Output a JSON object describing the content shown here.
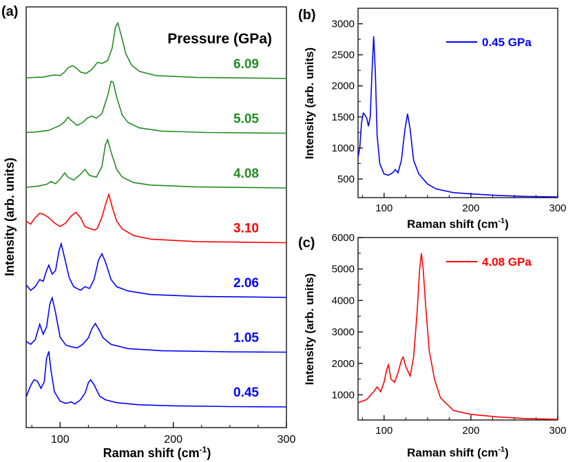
{
  "chart_data": [
    {
      "panel": "(a)",
      "type": "line",
      "xlabel": "Raman shift (cm",
      "xlabel_sup": "-1",
      "xlabel_close": ")",
      "ylabel": "Intensity (arb. units)",
      "xlim": [
        70,
        300
      ],
      "xticks": [
        100,
        200,
        300
      ],
      "legend_title": "Pressure (GPa)",
      "series": [
        {
          "name": "0.45",
          "color": "#0000ff",
          "offset": 0,
          "scale": 1,
          "points": [
            [
              70,
              0.28
            ],
            [
              74,
              0.6
            ],
            [
              77,
              0.76
            ],
            [
              80,
              0.72
            ],
            [
              83,
              0.52
            ],
            [
              86,
              0.7
            ],
            [
              88,
              1.35
            ],
            [
              90,
              1.55
            ],
            [
              92,
              1.0
            ],
            [
              95,
              0.42
            ],
            [
              100,
              0.16
            ],
            [
              105,
              0.1
            ],
            [
              110,
              0.14
            ],
            [
              113,
              0.08
            ],
            [
              118,
              0.2
            ],
            [
              122,
              0.38
            ],
            [
              125,
              0.68
            ],
            [
              127,
              0.76
            ],
            [
              130,
              0.62
            ],
            [
              135,
              0.3
            ],
            [
              140,
              0.2
            ],
            [
              150,
              0.12
            ],
            [
              170,
              0.06
            ],
            [
              200,
              0.03
            ],
            [
              250,
              0.01
            ],
            [
              300,
              0
            ]
          ]
        },
        {
          "name": "1.05",
          "color": "#0000ff",
          "offset": 1,
          "scale": 1,
          "points": [
            [
              70,
              0.3
            ],
            [
              74,
              0.22
            ],
            [
              78,
              0.35
            ],
            [
              82,
              0.78
            ],
            [
              85,
              0.5
            ],
            [
              88,
              0.7
            ],
            [
              91,
              1.35
            ],
            [
              93,
              1.52
            ],
            [
              96,
              1.1
            ],
            [
              100,
              0.42
            ],
            [
              105,
              0.2
            ],
            [
              110,
              0.15
            ],
            [
              115,
              0.12
            ],
            [
              120,
              0.22
            ],
            [
              125,
              0.4
            ],
            [
              128,
              0.65
            ],
            [
              131,
              0.8
            ],
            [
              134,
              0.65
            ],
            [
              138,
              0.4
            ],
            [
              145,
              0.22
            ],
            [
              160,
              0.1
            ],
            [
              190,
              0.04
            ],
            [
              250,
              0.01
            ],
            [
              300,
              0
            ]
          ]
        },
        {
          "name": "2.06",
          "color": "#0000ff",
          "offset": 2,
          "scale": 1,
          "points": [
            [
              70,
              0.35
            ],
            [
              74,
              0.2
            ],
            [
              78,
              0.3
            ],
            [
              82,
              0.5
            ],
            [
              85,
              0.45
            ],
            [
              88,
              0.75
            ],
            [
              90,
              0.9
            ],
            [
              93,
              0.65
            ],
            [
              96,
              0.75
            ],
            [
              99,
              1.3
            ],
            [
              101,
              1.5
            ],
            [
              104,
              1.1
            ],
            [
              108,
              0.55
            ],
            [
              112,
              0.3
            ],
            [
              118,
              0.2
            ],
            [
              122,
              0.3
            ],
            [
              126,
              0.25
            ],
            [
              130,
              0.5
            ],
            [
              134,
              1.05
            ],
            [
              137,
              1.22
            ],
            [
              140,
              1.0
            ],
            [
              145,
              0.5
            ],
            [
              150,
              0.3
            ],
            [
              160,
              0.18
            ],
            [
              180,
              0.08
            ],
            [
              220,
              0.03
            ],
            [
              300,
              0
            ]
          ]
        },
        {
          "name": "3.10",
          "color": "#ff0000",
          "offset": 3,
          "scale": 1,
          "points": [
            [
              70,
              0.6
            ],
            [
              74,
              0.52
            ],
            [
              78,
              0.7
            ],
            [
              82,
              0.82
            ],
            [
              85,
              0.8
            ],
            [
              90,
              0.7
            ],
            [
              95,
              0.55
            ],
            [
              100,
              0.45
            ],
            [
              105,
              0.55
            ],
            [
              110,
              0.75
            ],
            [
              114,
              0.85
            ],
            [
              118,
              0.7
            ],
            [
              122,
              0.45
            ],
            [
              126,
              0.4
            ],
            [
              130,
              0.35
            ],
            [
              133,
              0.4
            ],
            [
              137,
              0.72
            ],
            [
              140,
              1.05
            ],
            [
              143,
              1.35
            ],
            [
              146,
              1.0
            ],
            [
              150,
              0.6
            ],
            [
              155,
              0.38
            ],
            [
              165,
              0.2
            ],
            [
              180,
              0.1
            ],
            [
              220,
              0.03
            ],
            [
              300,
              0
            ]
          ]
        },
        {
          "name": "4.08",
          "color": "#228b22",
          "offset": 4,
          "scale": 1,
          "points": [
            [
              70,
              0.02
            ],
            [
              80,
              0.05
            ],
            [
              88,
              0.1
            ],
            [
              92,
              0.18
            ],
            [
              96,
              0.12
            ],
            [
              100,
              0.25
            ],
            [
              104,
              0.42
            ],
            [
              107,
              0.3
            ],
            [
              112,
              0.22
            ],
            [
              118,
              0.38
            ],
            [
              122,
              0.52
            ],
            [
              126,
              0.35
            ],
            [
              132,
              0.3
            ],
            [
              137,
              0.6
            ],
            [
              140,
              1.2
            ],
            [
              142,
              1.35
            ],
            [
              145,
              1.0
            ],
            [
              150,
              0.52
            ],
            [
              155,
              0.3
            ],
            [
              165,
              0.15
            ],
            [
              180,
              0.08
            ],
            [
              220,
              0.03
            ],
            [
              300,
              0
            ]
          ]
        },
        {
          "name": "5.05",
          "color": "#228b22",
          "offset": 5,
          "scale": 1,
          "points": [
            [
              70,
              0.02
            ],
            [
              80,
              0.04
            ],
            [
              90,
              0.08
            ],
            [
              95,
              0.15
            ],
            [
              100,
              0.22
            ],
            [
              104,
              0.32
            ],
            [
              107,
              0.45
            ],
            [
              110,
              0.35
            ],
            [
              115,
              0.22
            ],
            [
              120,
              0.3
            ],
            [
              124,
              0.42
            ],
            [
              128,
              0.48
            ],
            [
              132,
              0.42
            ],
            [
              137,
              0.55
            ],
            [
              142,
              1.05
            ],
            [
              145,
              1.45
            ],
            [
              147,
              1.42
            ],
            [
              150,
              1.0
            ],
            [
              155,
              0.5
            ],
            [
              160,
              0.3
            ],
            [
              170,
              0.15
            ],
            [
              190,
              0.06
            ],
            [
              230,
              0.02
            ],
            [
              300,
              0
            ]
          ]
        },
        {
          "name": "6.09",
          "color": "#228b22",
          "offset": 6,
          "scale": 1,
          "points": [
            [
              70,
              0.02
            ],
            [
              85,
              0.04
            ],
            [
              95,
              0.1
            ],
            [
              100,
              0.08
            ],
            [
              104,
              0.18
            ],
            [
              107,
              0.3
            ],
            [
              111,
              0.36
            ],
            [
              114,
              0.3
            ],
            [
              118,
              0.18
            ],
            [
              123,
              0.14
            ],
            [
              128,
              0.25
            ],
            [
              133,
              0.45
            ],
            [
              137,
              0.42
            ],
            [
              142,
              0.5
            ],
            [
              146,
              0.85
            ],
            [
              149,
              1.45
            ],
            [
              151,
              1.55
            ],
            [
              154,
              1.2
            ],
            [
              158,
              0.7
            ],
            [
              163,
              0.38
            ],
            [
              170,
              0.2
            ],
            [
              185,
              0.08
            ],
            [
              220,
              0.03
            ],
            [
              300,
              0
            ]
          ]
        }
      ]
    },
    {
      "panel": "(b)",
      "type": "line",
      "xlabel": "Raman shift (cm",
      "xlabel_sup": "-1",
      "xlabel_close": ")",
      "ylabel": "Intensity (arb. units)",
      "xlim": [
        70,
        300
      ],
      "ylim": [
        200,
        3250
      ],
      "xticks": [
        100,
        200,
        300
      ],
      "yticks": [
        500,
        1000,
        1500,
        2000,
        2500,
        3000
      ],
      "series": [
        {
          "name": "0.45 GPa",
          "color": "#0000ff",
          "points": [
            [
              70,
              850
            ],
            [
              72,
              1000
            ],
            [
              74,
              1400
            ],
            [
              76,
              1560
            ],
            [
              78,
              1530
            ],
            [
              80,
              1480
            ],
            [
              82,
              1350
            ],
            [
              84,
              1500
            ],
            [
              86,
              2200
            ],
            [
              88,
              2800
            ],
            [
              90,
              2200
            ],
            [
              92,
              1200
            ],
            [
              95,
              750
            ],
            [
              100,
              580
            ],
            [
              105,
              560
            ],
            [
              110,
              600
            ],
            [
              113,
              650
            ],
            [
              116,
              600
            ],
            [
              120,
              800
            ],
            [
              124,
              1300
            ],
            [
              127,
              1550
            ],
            [
              130,
              1300
            ],
            [
              134,
              800
            ],
            [
              140,
              580
            ],
            [
              150,
              420
            ],
            [
              160,
              340
            ],
            [
              180,
              280
            ],
            [
              200,
              260
            ],
            [
              230,
              235
            ],
            [
              260,
              220
            ],
            [
              300,
              210
            ]
          ]
        }
      ]
    },
    {
      "panel": "(c)",
      "type": "line",
      "xlabel": "Raman shift (cm",
      "xlabel_sup": "-1",
      "xlabel_close": ")",
      "ylabel": "Intensity (arb. units)",
      "xlim": [
        70,
        300
      ],
      "ylim": [
        200,
        6000
      ],
      "xticks": [
        100,
        200,
        300
      ],
      "yticks": [
        1000,
        2000,
        3000,
        4000,
        5000,
        6000
      ],
      "series": [
        {
          "name": "4.08 GPa",
          "color": "#ff0000",
          "points": [
            [
              70,
              750
            ],
            [
              80,
              850
            ],
            [
              88,
              1100
            ],
            [
              92,
              1250
            ],
            [
              96,
              1100
            ],
            [
              100,
              1400
            ],
            [
              103,
              1800
            ],
            [
              105,
              1950
            ],
            [
              108,
              1500
            ],
            [
              112,
              1400
            ],
            [
              116,
              1700
            ],
            [
              120,
              2100
            ],
            [
              122,
              2200
            ],
            [
              125,
              1900
            ],
            [
              130,
              1600
            ],
            [
              134,
              2200
            ],
            [
              138,
              3600
            ],
            [
              141,
              5000
            ],
            [
              143,
              5500
            ],
            [
              145,
              5000
            ],
            [
              148,
              3800
            ],
            [
              152,
              2400
            ],
            [
              158,
              1500
            ],
            [
              165,
              900
            ],
            [
              180,
              500
            ],
            [
              200,
              380
            ],
            [
              230,
              300
            ],
            [
              260,
              250
            ],
            [
              300,
              220
            ]
          ]
        }
      ]
    }
  ]
}
